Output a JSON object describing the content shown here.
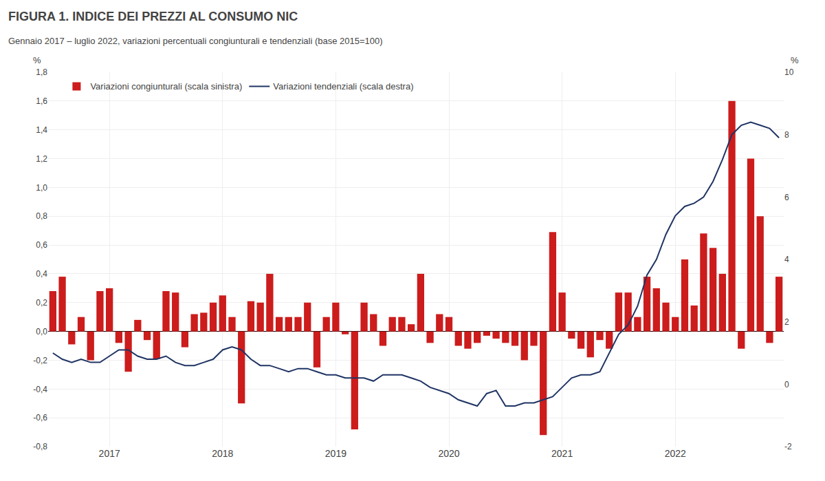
{
  "chart_data": {
    "type": "bar",
    "title": "FIGURA 1. INDICE DEI PREZZI AL CONSUMO NIC",
    "subtitle": "Gennaio 2017 – luglio 2022, variazioni percentuali congiunturali e tendenziali (base 2015=100)",
    "ylabel": "%",
    "y2label": "%",
    "categories": [
      null,
      null,
      null,
      null,
      null,
      null,
      "2017",
      null,
      null,
      null,
      null,
      null,
      null,
      null,
      null,
      null,
      null,
      null,
      "2018",
      null,
      null,
      null,
      null,
      null,
      null,
      null,
      null,
      null,
      null,
      null,
      "2019",
      null,
      null,
      null,
      null,
      null,
      null,
      null,
      null,
      null,
      null,
      null,
      "2020",
      null,
      null,
      null,
      null,
      null,
      null,
      null,
      null,
      null,
      null,
      null,
      "2021",
      null,
      null,
      null,
      null,
      null,
      null,
      null,
      null,
      null,
      null,
      null,
      "2022",
      null,
      null,
      null,
      null,
      null,
      null,
      null,
      null,
      null,
      null,
      null
    ],
    "series": [
      {
        "name": "Variazioni congiunturali (scala sinistra)",
        "type": "bar",
        "color": "#CC1C1C",
        "values": [
          0.28,
          0.38,
          -0.09,
          0.1,
          -0.2,
          0.28,
          0.3,
          -0.08,
          -0.28,
          0.08,
          -0.06,
          -0.19,
          0.28,
          0.27,
          -0.11,
          0.12,
          0.13,
          0.2,
          0.25,
          0.1,
          -0.5,
          0.21,
          0.2,
          0.4,
          0.1,
          0.1,
          0.1,
          0.2,
          -0.25,
          0.1,
          0.2,
          -0.02,
          -0.68,
          0.2,
          0.12,
          -0.1,
          0.1,
          0.1,
          0.05,
          0.4,
          -0.08,
          0.12,
          0.1,
          -0.1,
          -0.12,
          -0.08,
          -0.03,
          -0.05,
          -0.08,
          -0.1,
          -0.2,
          -0.1,
          -0.72,
          0.69,
          0.27,
          -0.05,
          -0.12,
          -0.18,
          -0.06,
          -0.12,
          0.27,
          0.27,
          0.1,
          0.38,
          0.3,
          0.2,
          0.1,
          0.5,
          0.18,
          0.68,
          0.58,
          0.4,
          1.6,
          -0.12,
          1.2,
          0.8,
          -0.08,
          0.38
        ]
      },
      {
        "name": "Variazioni tendenziali (scala destra)",
        "type": "line",
        "axis": "y2",
        "color": "#1F3464",
        "values": [
          1.0,
          0.8,
          0.7,
          0.8,
          0.7,
          0.7,
          0.9,
          1.1,
          1.1,
          0.9,
          0.8,
          0.8,
          0.9,
          0.7,
          0.6,
          0.6,
          0.7,
          0.8,
          1.1,
          1.2,
          1.1,
          0.8,
          0.6,
          0.6,
          0.5,
          0.4,
          0.5,
          0.5,
          0.4,
          0.3,
          0.3,
          0.2,
          0.2,
          0.2,
          0.1,
          0.3,
          0.3,
          0.3,
          0.2,
          0.1,
          -0.1,
          -0.2,
          -0.3,
          -0.5,
          -0.6,
          -0.7,
          -0.3,
          -0.2,
          -0.7,
          -0.7,
          -0.6,
          -0.6,
          -0.5,
          -0.4,
          -0.1,
          0.2,
          0.3,
          0.3,
          0.4,
          1.0,
          1.6,
          1.9,
          2.5,
          3.5,
          4.0,
          4.8,
          5.4,
          5.7,
          5.8,
          6.0,
          6.5,
          7.2,
          8.0,
          8.3,
          8.4,
          8.3,
          8.2,
          7.9
        ]
      }
    ],
    "ylim": [
      -0.8,
      1.8
    ],
    "yticks": [
      {
        "value": -0.8,
        "label": "-0,8"
      },
      {
        "value": -0.6,
        "label": "-0,6"
      },
      {
        "value": -0.4,
        "label": "-0,4"
      },
      {
        "value": -0.2,
        "label": "-0,2"
      },
      {
        "value": 0.0,
        "label": "0,0"
      },
      {
        "value": 0.2,
        "label": "0,2"
      },
      {
        "value": 0.4,
        "label": "0,4"
      },
      {
        "value": 0.6,
        "label": "0,6"
      },
      {
        "value": 0.8,
        "label": "0,8"
      },
      {
        "value": 1.0,
        "label": "1,0"
      },
      {
        "value": 1.2,
        "label": "1,2"
      },
      {
        "value": 1.4,
        "label": "1,4"
      },
      {
        "value": 1.6,
        "label": "1,6"
      },
      {
        "value": 1.8,
        "label": "1,8"
      }
    ],
    "y2lim": [
      -2,
      10
    ],
    "y2ticks": [
      -2,
      0,
      2,
      4,
      6,
      8,
      10
    ],
    "grid": true,
    "legend": "upper left"
  }
}
